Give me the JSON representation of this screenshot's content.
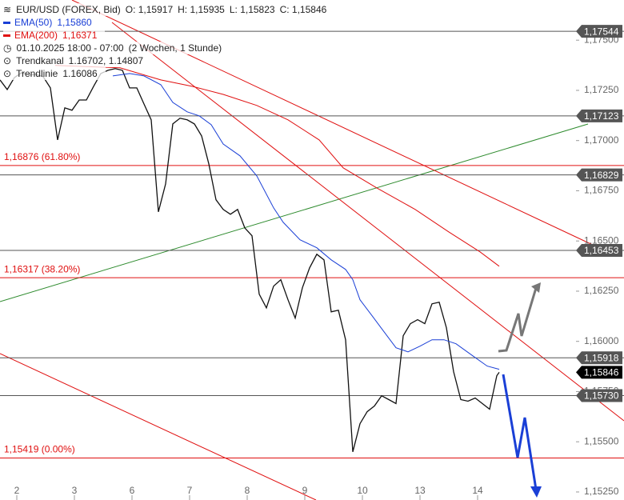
{
  "chart_data": {
    "type": "line",
    "title": "EUR/USD (FOREX, Bid)",
    "ohlc": [
      "O: 1,15917",
      "H: 1,15935",
      "L: 1,15823",
      "C: 1,15846"
    ],
    "period": "01.10.2025 18:00 - 07:00",
    "range": "(2 Wochen, 1 Stunde)",
    "studies": [
      {
        "name": "Trendkanal",
        "params": "1.16702, 1.14807"
      },
      {
        "name": "Trendlinie",
        "params": "1.16086"
      }
    ],
    "series": [
      {
        "name": "EUR/USD (FOREX, Bid)",
        "color": "#111111",
        "x": [
          -7,
          -4,
          -1,
          2,
          5,
          8,
          11,
          14,
          17,
          20,
          23,
          26,
          29,
          32,
          35,
          38,
          41,
          44,
          47,
          50,
          53,
          56,
          59,
          62,
          65,
          68,
          71,
          74,
          77,
          80,
          83,
          86,
          89,
          92,
          95,
          98,
          101,
          104,
          107,
          110,
          113,
          116,
          119,
          122,
          125,
          128,
          131,
          134,
          137,
          140,
          143,
          146,
          149,
          152,
          155,
          158,
          161,
          164,
          167,
          170,
          173,
          176,
          179,
          182,
          185,
          188,
          191,
          194,
          197,
          200,
          201
        ],
        "values": [
          1.17302,
          1.17254,
          1.17314,
          1.17338,
          1.17326,
          1.1733,
          1.17318,
          1.17262,
          1.17003,
          1.17163,
          1.17151,
          1.17202,
          1.17202,
          1.1727,
          1.17334,
          1.1735,
          1.17358,
          1.1735,
          1.17262,
          1.17262,
          1.17182,
          1.17103,
          1.16645,
          1.16784,
          1.17083,
          1.17111,
          1.17103,
          1.17083,
          1.17023,
          1.16884,
          1.16705,
          1.16657,
          1.16633,
          1.16657,
          1.16565,
          1.16526,
          1.16235,
          1.16167,
          1.16275,
          1.16307,
          1.16207,
          1.16116,
          1.16267,
          1.16366,
          1.16434,
          1.16406,
          1.16147,
          1.16155,
          1.16008,
          1.1545,
          1.1559,
          1.1565,
          1.15678,
          1.15729,
          1.1571,
          1.1569,
          1.16028,
          1.16088,
          1.16108,
          1.16088,
          1.16187,
          1.16195,
          1.16068,
          1.15849,
          1.1571,
          1.15702,
          1.15718,
          1.1569,
          1.15662,
          1.15829,
          1.15846
        ]
      },
      {
        "name": "EMA(50)",
        "color": "#1a3fd6",
        "legend_value": "1,15860",
        "x": [
          40,
          47,
          53,
          60,
          65,
          71,
          76,
          81,
          86,
          93,
          100,
          107,
          111,
          118,
          125,
          131,
          137,
          140,
          143,
          148,
          153,
          158,
          163,
          168,
          173,
          178,
          183,
          190,
          196,
          201
        ],
        "values": [
          1.17322,
          1.17334,
          1.17322,
          1.17278,
          1.1719,
          1.17143,
          1.17123,
          1.17079,
          1.16983,
          1.16924,
          1.16824,
          1.16665,
          1.16593,
          1.16506,
          1.16466,
          1.16406,
          1.16358,
          1.16307,
          1.16207,
          1.16128,
          1.16048,
          1.15968,
          1.15948,
          1.15976,
          1.16008,
          1.16008,
          1.15988,
          1.15928,
          1.15877,
          1.15861
        ]
      },
      {
        "name": "EMA(200)",
        "color": "#e01010",
        "legend_value": "1,16371",
        "x": [
          16,
          43,
          60,
          73,
          86,
          100,
          113,
          126,
          136,
          150,
          166,
          180,
          193,
          201
        ],
        "values": [
          1.17374,
          1.17362,
          1.17302,
          1.1727,
          1.1723,
          1.17175,
          1.17103,
          1.17003,
          1.16864,
          1.16764,
          1.16657,
          1.16545,
          1.16446,
          1.16374
        ]
      }
    ],
    "levels": [
      {
        "value": 1.17544,
        "label": "1,17544"
      },
      {
        "value": 1.17123,
        "label": "1,17123"
      },
      {
        "value": 1.16829,
        "label": "1,16829"
      },
      {
        "value": 1.16453,
        "label": "1,16453"
      },
      {
        "value": 1.15918,
        "label": "1,15918"
      },
      {
        "value": 1.1573,
        "label": "1,15730"
      }
    ],
    "level_color": "#555555",
    "current_price": {
      "value": 1.15846,
      "label": "1,15846"
    },
    "fib_levels": [
      {
        "value": 1.16876,
        "label": "1,16876 (61.80%)"
      },
      {
        "value": 1.16317,
        "label": "1,16317 (38.20%)"
      },
      {
        "value": 1.15419,
        "label": "1,15419 (0.00%)"
      }
    ],
    "fib_color": "#e01010",
    "xlim": [
      -7,
      233
    ],
    "xticks": [
      {
        "value": 0,
        "label": "2"
      },
      {
        "value": 24,
        "label": "3"
      },
      {
        "value": 48,
        "label": "6"
      },
      {
        "value": 72,
        "label": "7"
      },
      {
        "value": 96,
        "label": "8"
      },
      {
        "value": 120,
        "label": "9"
      },
      {
        "value": 144,
        "label": "10"
      },
      {
        "value": 168,
        "label": "13"
      },
      {
        "value": 192,
        "label": "14"
      }
    ],
    "ylim": [
      1.1521,
      1.177
    ],
    "yticks": [
      {
        "value": 1.1525,
        "label": "1,15250"
      },
      {
        "value": 1.155,
        "label": "1,15500"
      },
      {
        "value": 1.1575,
        "label": "1,15750"
      },
      {
        "value": 1.16,
        "label": "1,16000"
      },
      {
        "value": 1.1625,
        "label": "1,16250"
      },
      {
        "value": 1.165,
        "label": "1,16500"
      },
      {
        "value": 1.1675,
        "label": "1,16750"
      },
      {
        "value": 1.17,
        "label": "1,17000"
      },
      {
        "value": 1.1725,
        "label": "1,17250"
      },
      {
        "value": 1.175,
        "label": "1,17500"
      }
    ]
  }
}
